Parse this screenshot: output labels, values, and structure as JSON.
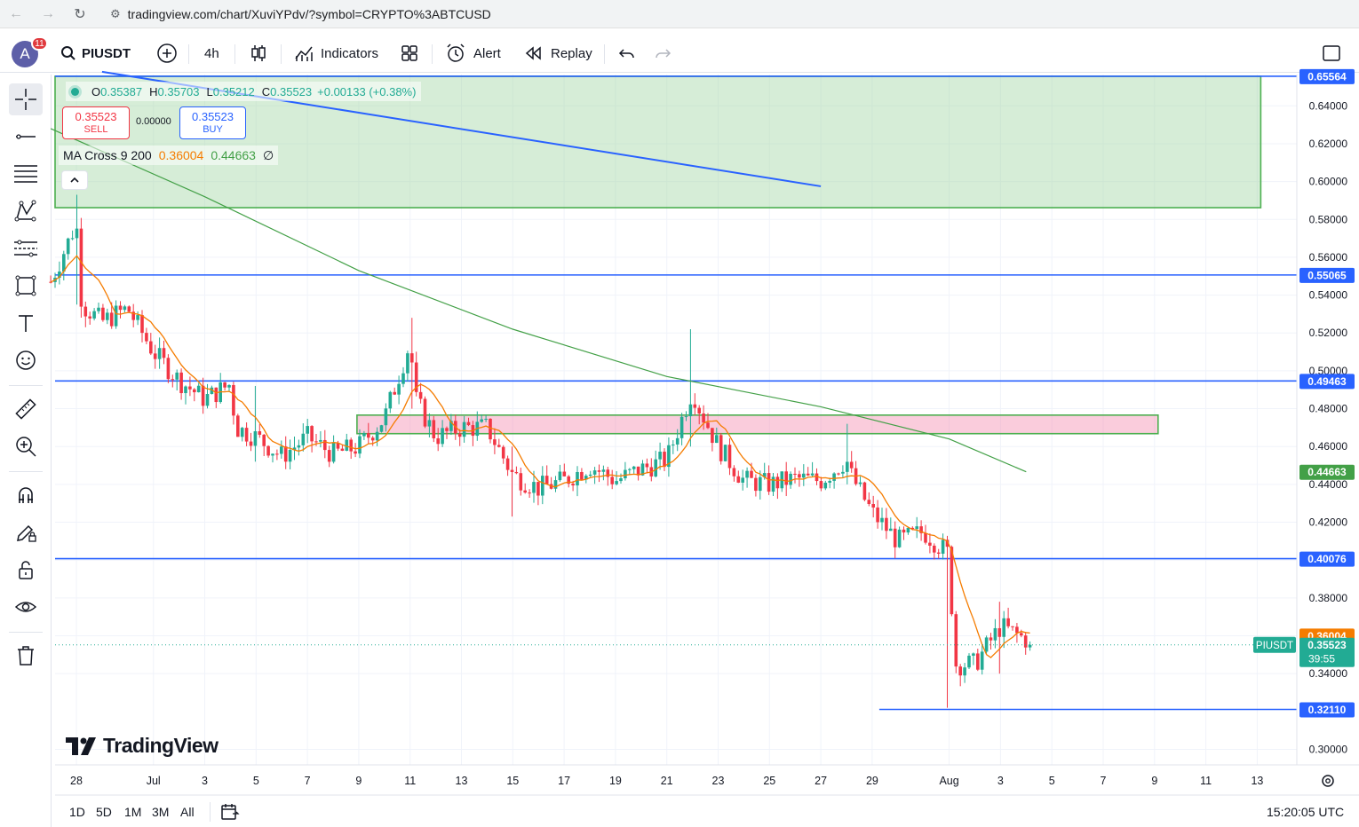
{
  "browser": {
    "url": "tradingview.com/chart/XuviYPdv/?symbol=CRYPTO%3ABTCUSD"
  },
  "toolbar": {
    "avatar_letter": "A",
    "notifications": "11",
    "symbol": "PIUSDT",
    "interval": "4h",
    "indicators_label": "Indicators",
    "alert_label": "Alert",
    "replay_label": "Replay"
  },
  "legend": {
    "o_label": "O",
    "o_value": "0.35387",
    "h_label": "H",
    "h_value": "0.35703",
    "l_label": "L",
    "l_value": "0.35212",
    "c_label": "C",
    "c_value": "0.35523",
    "change": "+0.00133 (+0.38%)"
  },
  "trade": {
    "sell_price": "0.35523",
    "sell_label": "SELL",
    "spread": "0.00000",
    "buy_price": "0.35523",
    "buy_label": "BUY"
  },
  "indicator": {
    "name": "MA Cross",
    "params": "9 200",
    "fast_value": "0.36004",
    "slow_value": "0.44663",
    "extra": "∅"
  },
  "bottom": {
    "ranges": [
      "1D",
      "5D",
      "1M",
      "3M",
      "All"
    ],
    "time": "15:20:05 UTC"
  },
  "colors": {
    "up": "#22ab94",
    "down": "#f23645",
    "hline": "#2962ff",
    "fast_ma": "#f57c00",
    "slow_ma": "#43a047",
    "zone_green": "#c8e6c9",
    "zone_pink": "#f8bbd0"
  },
  "chart_data": {
    "type": "candlestick",
    "symbol": "PIUSDT",
    "interval": "4h",
    "ylim": [
      0.29,
      0.66
    ],
    "y_ticks": [
      "0.64000",
      "0.62000",
      "0.60000",
      "0.58000",
      "0.56000",
      "0.54000",
      "0.52000",
      "0.50000",
      "0.48000",
      "0.46000",
      "0.44000",
      "0.42000",
      "0.40000",
      "0.38000",
      "0.36000",
      "0.34000",
      "0.30000"
    ],
    "x_ticks": [
      "28",
      "Jul",
      "3",
      "5",
      "7",
      "9",
      "11",
      "13",
      "15",
      "17",
      "19",
      "21",
      "23",
      "25",
      "27",
      "29",
      "Aug",
      "3",
      "5",
      "7",
      "9",
      "11",
      "13"
    ],
    "horizontal_lines": [
      {
        "value": 0.65564,
        "label": "0.65564"
      },
      {
        "value": 0.55065,
        "label": "0.55065"
      },
      {
        "value": 0.49463,
        "label": "0.49463"
      },
      {
        "value": 0.40076,
        "label": "0.40076"
      },
      {
        "value": 0.3211,
        "label": "0.32110"
      }
    ],
    "price_tags": [
      {
        "value": 0.44663,
        "label": "0.44663",
        "kind": "slow_ma"
      },
      {
        "value": 0.36004,
        "label": "0.36004",
        "kind": "fast_ma"
      },
      {
        "value": 0.35523,
        "label": "0.35523",
        "kind": "last",
        "countdown": "39:55",
        "symbol_tag": "PIUSDT"
      }
    ],
    "zones": [
      {
        "kind": "green",
        "from": "Jun 27",
        "to": "Aug 13",
        "low": 0.5862,
        "high": 0.6556
      },
      {
        "kind": "pink",
        "from": "Jul 9",
        "to": "Aug 9",
        "low": 0.4668,
        "high": 0.4766
      }
    ],
    "trend_line": {
      "from": [
        "Jun 29",
        0.658
      ],
      "to": [
        "Jul 27",
        0.5975
      ]
    },
    "path_points": [
      {
        "d": "Jun 27",
        "p": 0.547
      },
      {
        "d": "Jun 28",
        "p": 0.578
      },
      {
        "d": "Jun 28",
        "p": 0.535
      },
      {
        "d": "Jun 29",
        "p": 0.526
      },
      {
        "d": "Jun 30",
        "p": 0.533
      },
      {
        "d": "Jul 1",
        "p": 0.51
      },
      {
        "d": "Jul 2",
        "p": 0.495
      },
      {
        "d": "Jul 3",
        "p": 0.485
      },
      {
        "d": "Jul 4",
        "p": 0.493
      },
      {
        "d": "Jul 4",
        "p": 0.47
      },
      {
        "d": "Jul 5",
        "p": 0.465
      },
      {
        "d": "Jul 6",
        "p": 0.455
      },
      {
        "d": "Jul 7",
        "p": 0.465
      },
      {
        "d": "Jul 8",
        "p": 0.456
      },
      {
        "d": "Jul 9",
        "p": 0.46
      },
      {
        "d": "Jul 10",
        "p": 0.475
      },
      {
        "d": "Jul 11",
        "p": 0.515
      },
      {
        "d": "Jul 11",
        "p": 0.485
      },
      {
        "d": "Jul 12",
        "p": 0.465
      },
      {
        "d": "Jul 13",
        "p": 0.47
      },
      {
        "d": "Jul 14",
        "p": 0.47
      },
      {
        "d": "Jul 15",
        "p": 0.445
      },
      {
        "d": "Jul 16",
        "p": 0.438
      },
      {
        "d": "Jul 17",
        "p": 0.442
      },
      {
        "d": "Jul 18",
        "p": 0.45
      },
      {
        "d": "Jul 19",
        "p": 0.442
      },
      {
        "d": "Jul 20",
        "p": 0.448
      },
      {
        "d": "Jul 21",
        "p": 0.453
      },
      {
        "d": "Jul 22",
        "p": 0.49
      },
      {
        "d": "Jul 22",
        "p": 0.482
      },
      {
        "d": "Jul 23",
        "p": 0.46
      },
      {
        "d": "Jul 24",
        "p": 0.442
      },
      {
        "d": "Jul 25",
        "p": 0.44
      },
      {
        "d": "Jul 26",
        "p": 0.443
      },
      {
        "d": "Jul 27",
        "p": 0.442
      },
      {
        "d": "Jul 28",
        "p": 0.453
      },
      {
        "d": "Jul 28",
        "p": 0.444
      },
      {
        "d": "Jul 29",
        "p": 0.425
      },
      {
        "d": "Jul 30",
        "p": 0.41
      },
      {
        "d": "Jul 31",
        "p": 0.415
      },
      {
        "d": "Aug 1",
        "p": 0.403
      },
      {
        "d": "Aug 1",
        "p": 0.345
      },
      {
        "d": "Aug 2",
        "p": 0.345
      },
      {
        "d": "Aug 3",
        "p": 0.365
      },
      {
        "d": "Aug 4",
        "p": 0.358
      },
      {
        "d": "Aug 4",
        "p": 0.3552
      }
    ]
  }
}
